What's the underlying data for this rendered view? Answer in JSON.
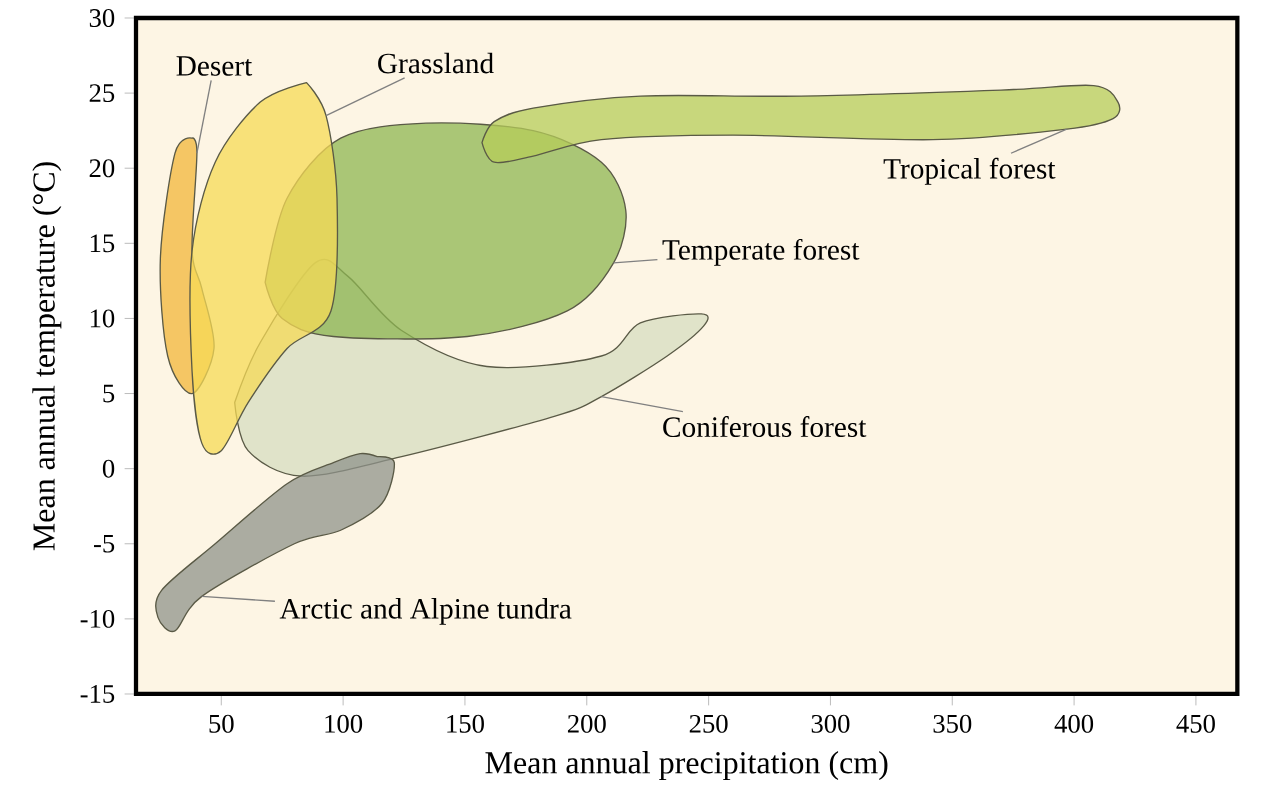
{
  "chart_data": {
    "type": "area",
    "xlabel": "Mean annual precipitation (cm)",
    "ylabel": "Mean annual temperature (°C)",
    "xlim": [
      15,
      467
    ],
    "ylim": [
      -15,
      30
    ],
    "xticks": [
      50,
      100,
      150,
      200,
      250,
      300,
      350,
      400,
      450
    ],
    "yticks": [
      -15,
      -10,
      -5,
      0,
      5,
      10,
      15,
      20,
      25,
      30
    ],
    "grid": false,
    "legend": false,
    "series": [
      {
        "name": "Coniferous forest",
        "color": "#d5dcc0",
        "x": [
          55.5,
          66,
          88.5,
          102,
          124,
          159,
          206,
          222,
          247,
          248,
          233,
          206,
          187,
          124,
          83,
          61
        ],
        "values": [
          4.4,
          8.4,
          13.7,
          12.8,
          9.2,
          6.8,
          7.5,
          9.7,
          10.3,
          9.5,
          7.5,
          4.8,
          3.5,
          0.8,
          -0.5,
          1.2
        ]
      },
      {
        "name": "Temperate forest",
        "color": "#8db552",
        "x": [
          68,
          77,
          99,
          134,
          178,
          206,
          216,
          211,
          192,
          151,
          96,
          75
        ],
        "values": [
          12.4,
          18,
          22,
          23,
          22.5,
          20.4,
          17.2,
          13.7,
          10.5,
          8.8,
          8.8,
          10
        ]
      },
      {
        "name": "Tropical forest",
        "color": "#b5cc5a",
        "x": [
          157,
          162,
          178,
          206,
          260,
          342,
          397,
          416,
          418,
          408,
          370,
          288,
          222,
          178,
          162
        ],
        "values": [
          21.7,
          20.4,
          20.8,
          21.9,
          22.2,
          21.9,
          22.6,
          23.3,
          24.4,
          25.5,
          25.2,
          24.8,
          24.8,
          24,
          23.1
        ]
      },
      {
        "name": "Arctic and Alpine tundra",
        "color": "#8f938b",
        "x": [
          114,
          121,
          116,
          99,
          80,
          42,
          31,
          24,
          25.5,
          47.5,
          77,
          96,
          107
        ],
        "values": [
          0.8,
          0.4,
          -2.3,
          -4.1,
          -5,
          -8.5,
          -10.8,
          -9.9,
          -8.1,
          -5,
          -1,
          0.4,
          1
        ]
      },
      {
        "name": "Desert",
        "color": "#f2b53a",
        "x": [
          38,
          31,
          25,
          28,
          38,
          47,
          42,
          38,
          40
        ],
        "values": [
          22,
          21,
          14,
          7.5,
          5,
          8,
          12,
          14.5,
          21
        ]
      },
      {
        "name": "Grassland",
        "color": "#f6d955",
        "x": [
          85,
          93,
          97.5,
          95,
          77,
          61,
          50,
          42,
          38,
          38,
          47.5,
          66
        ],
        "values": [
          25.7,
          23.5,
          18,
          10.5,
          8,
          4.4,
          1.2,
          1.7,
          6.5,
          14.5,
          20.4,
          24.4
        ]
      }
    ]
  }
}
